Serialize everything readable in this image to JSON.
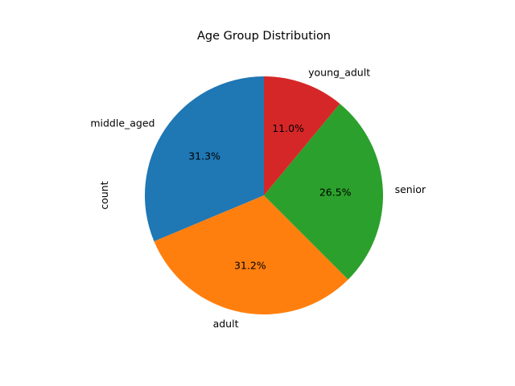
{
  "chart_data": {
    "type": "pie",
    "title": "Age Group Distribution",
    "ylabel": "count",
    "start_angle_deg": 90,
    "direction": "counterclockwise",
    "slices": [
      {
        "label": "middle_aged",
        "value": 31.3,
        "pct_text": "31.3%",
        "color": "#1f77b4"
      },
      {
        "label": "adult",
        "value": 31.2,
        "pct_text": "31.2%",
        "color": "#ff7f0e"
      },
      {
        "label": "senior",
        "value": 26.5,
        "pct_text": "26.5%",
        "color": "#2ca02c"
      },
      {
        "label": "young_adult",
        "value": 11.0,
        "pct_text": "11.0%",
        "color": "#d62728"
      }
    ]
  }
}
